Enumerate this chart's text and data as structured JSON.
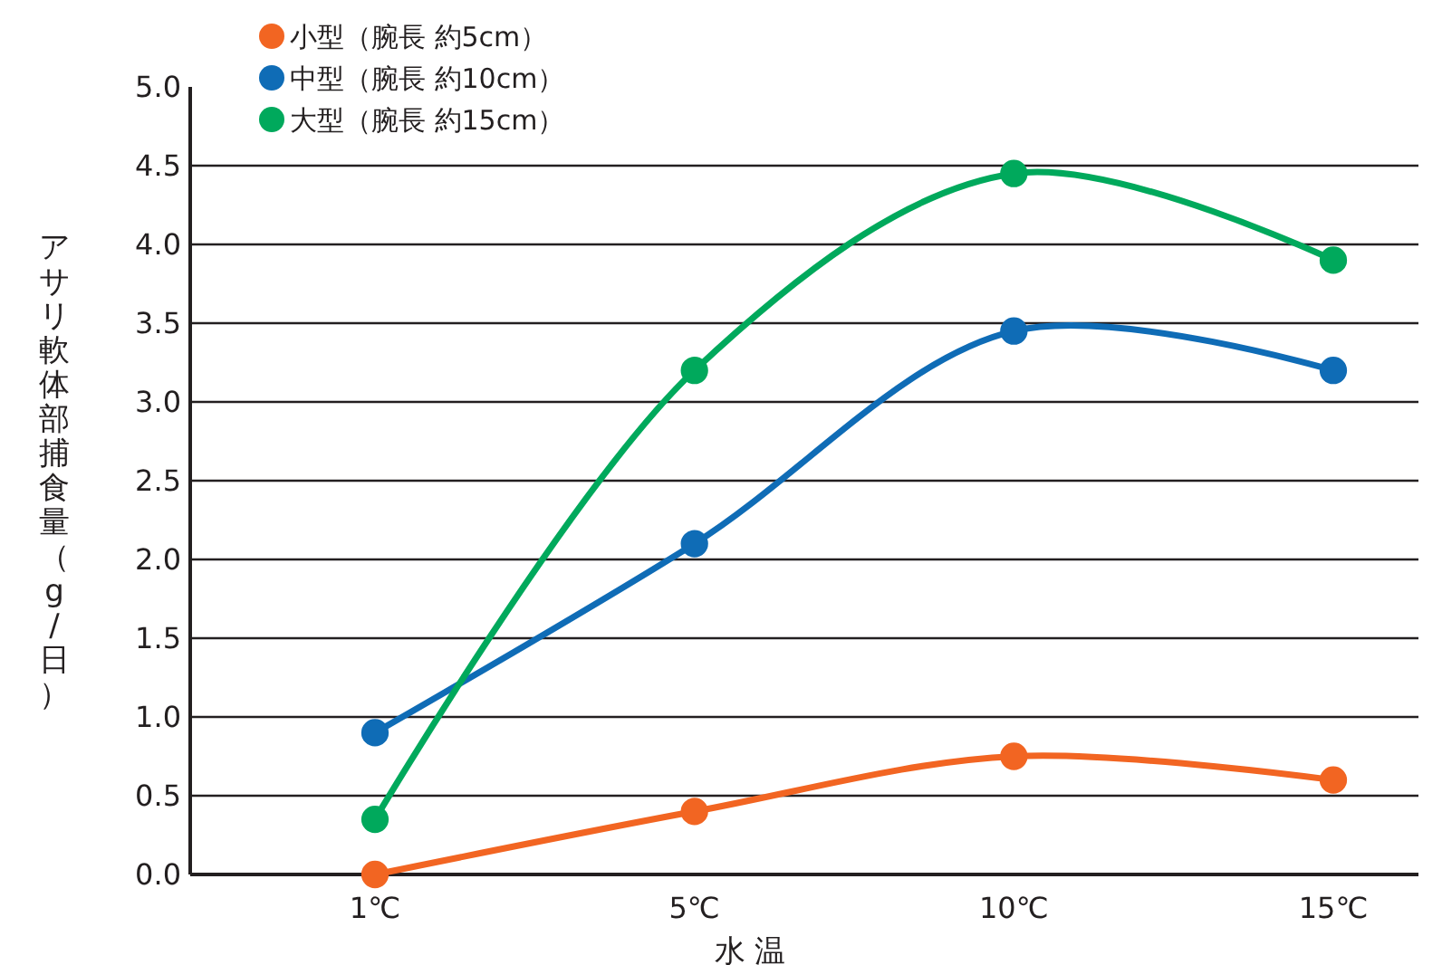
{
  "chart_data": {
    "type": "line",
    "xlabel": "水 温",
    "ylabel": "アサリ軟体部捕食量（g/日）",
    "categories": [
      "1℃",
      "5℃",
      "10℃",
      "15℃"
    ],
    "ylim": [
      0,
      5
    ],
    "yticks": [
      {
        "value": 0,
        "label": "0.0"
      },
      {
        "value": 0.5,
        "label": "0.5"
      },
      {
        "value": 1,
        "label": "1.0"
      },
      {
        "value": 1.5,
        "label": "1.5"
      },
      {
        "value": 2,
        "label": "2.0"
      },
      {
        "value": 2.5,
        "label": "2.5"
      },
      {
        "value": 3,
        "label": "3.0"
      },
      {
        "value": 3.5,
        "label": "3.5"
      },
      {
        "value": 4,
        "label": "4.0"
      },
      {
        "value": 4.5,
        "label": "4.5"
      },
      {
        "value": 5,
        "label": "5.0"
      }
    ],
    "grid": "y",
    "legend": "top left",
    "marker": "circle",
    "series": [
      {
        "name": "小型（腕長 約5cm）",
        "color": "#f26522",
        "values": [
          0,
          0.4,
          0.75,
          0.6
        ]
      },
      {
        "name": "中型（腕長 約10cm）",
        "color": "#0f6cb6",
        "values": [
          0.9,
          2.1,
          3.45,
          3.2
        ]
      },
      {
        "name": "大型（腕長 約15cm）",
        "color": "#00a95c",
        "values": [
          0.35,
          3.2,
          4.45,
          3.9
        ]
      }
    ]
  }
}
